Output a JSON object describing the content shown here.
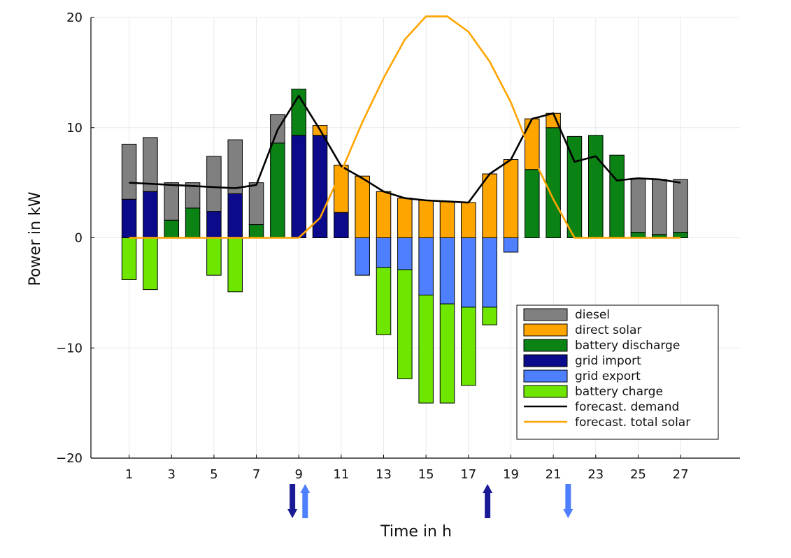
{
  "chart_data": {
    "type": "bar",
    "stacked": true,
    "xlabel": "Time in h",
    "ylabel": "Power in kW",
    "ylim": [
      -20,
      20
    ],
    "xlim": [
      -0.8,
      29.8
    ],
    "x": [
      1,
      2,
      3,
      4,
      5,
      6,
      7,
      8,
      9,
      10,
      11,
      12,
      13,
      14,
      15,
      16,
      17,
      18,
      19,
      20,
      21,
      22,
      23,
      24,
      25,
      26,
      27
    ],
    "xticks": [
      1,
      3,
      5,
      7,
      9,
      11,
      13,
      15,
      17,
      19,
      21,
      23,
      25,
      27
    ],
    "yticks": [
      -20,
      -10,
      0,
      10,
      20
    ],
    "grid": true,
    "legend_position": "bottom-right",
    "series": [
      {
        "name": "grid import",
        "kind": "bar",
        "color": "#0a0a8a",
        "values": [
          3.5,
          4.2,
          0,
          0,
          2.4,
          4.0,
          0,
          0,
          9.3,
          9.3,
          2.3,
          0,
          0,
          0,
          0,
          0,
          0,
          0,
          0,
          0,
          0,
          0,
          0,
          0,
          0,
          0,
          0
        ]
      },
      {
        "name": "battery discharge",
        "kind": "bar",
        "color": "#0a8214",
        "values": [
          0,
          0,
          1.6,
          2.7,
          0,
          0,
          1.2,
          8.6,
          4.2,
          0,
          0,
          0,
          0,
          0,
          0,
          0,
          0,
          0,
          0,
          6.2,
          10.0,
          9.2,
          9.3,
          7.5,
          0.5,
          0.3,
          0.5
        ]
      },
      {
        "name": "direct solar",
        "kind": "bar",
        "color": "#ffa500",
        "values": [
          0,
          0,
          0,
          0,
          0,
          0,
          0,
          0,
          0,
          0.9,
          4.3,
          5.6,
          4.2,
          3.6,
          3.4,
          3.3,
          3.2,
          5.8,
          7.1,
          4.6,
          1.3,
          0,
          0,
          0,
          0,
          0,
          0
        ]
      },
      {
        "name": "diesel",
        "kind": "bar",
        "color": "#808080",
        "values": [
          5.0,
          4.9,
          3.4,
          2.3,
          5.0,
          4.9,
          3.8,
          2.6,
          0,
          0,
          0,
          0,
          0,
          0,
          0,
          0,
          0,
          0,
          0,
          0,
          0,
          0,
          0,
          0,
          4.9,
          5.0,
          4.8
        ]
      },
      {
        "name": "grid export",
        "kind": "bar",
        "color": "#4d7fff",
        "values": [
          0,
          0,
          0,
          0,
          0,
          0,
          0,
          0,
          0,
          0,
          0,
          -3.4,
          -2.7,
          -2.9,
          -5.2,
          -6.0,
          -6.3,
          -6.3,
          -1.3,
          0,
          0,
          0,
          0,
          0,
          0,
          0,
          0
        ]
      },
      {
        "name": "battery charge",
        "kind": "bar",
        "color": "#6ee600",
        "values": [
          -3.8,
          -4.7,
          0,
          0,
          -3.4,
          -4.9,
          0,
          0,
          0,
          0,
          0,
          0,
          -6.1,
          -9.9,
          -9.8,
          -9.0,
          -7.1,
          -1.6,
          0,
          0,
          0,
          0,
          0,
          0,
          0,
          0,
          0
        ]
      },
      {
        "name": "forecast. demand",
        "kind": "line",
        "color": "#000000",
        "values": [
          5.0,
          4.9,
          4.8,
          4.7,
          4.6,
          4.5,
          4.8,
          9.8,
          12.9,
          9.8,
          6.5,
          5.4,
          4.2,
          3.6,
          3.4,
          3.3,
          3.2,
          5.8,
          7.1,
          10.8,
          11.3,
          6.9,
          7.4,
          5.2,
          5.4,
          5.3,
          5.0
        ]
      },
      {
        "name": "forecast. total solar",
        "kind": "line",
        "color": "#ffa500",
        "values": [
          0,
          0,
          0,
          0,
          0,
          0,
          0,
          0,
          0,
          1.8,
          6.0,
          10.5,
          14.5,
          18.0,
          20.1,
          20.1,
          18.7,
          16.0,
          12.3,
          7.5,
          3.5,
          0,
          0,
          0,
          0,
          0,
          0
        ]
      }
    ],
    "legend_order": [
      "diesel",
      "direct solar",
      "battery discharge",
      "grid import",
      "grid export",
      "battery charge",
      "forecast. demand",
      "forecast. total solar"
    ],
    "annotations": [
      {
        "type": "arrow",
        "direction": "down",
        "x": 8.7,
        "color": "#1a1a96"
      },
      {
        "type": "arrow",
        "direction": "up",
        "x": 9.3,
        "color": "#4d7fff"
      },
      {
        "type": "arrow",
        "direction": "up",
        "x": 17.9,
        "color": "#1a1a96"
      },
      {
        "type": "arrow",
        "direction": "down",
        "x": 21.7,
        "color": "#4d7fff"
      }
    ]
  }
}
